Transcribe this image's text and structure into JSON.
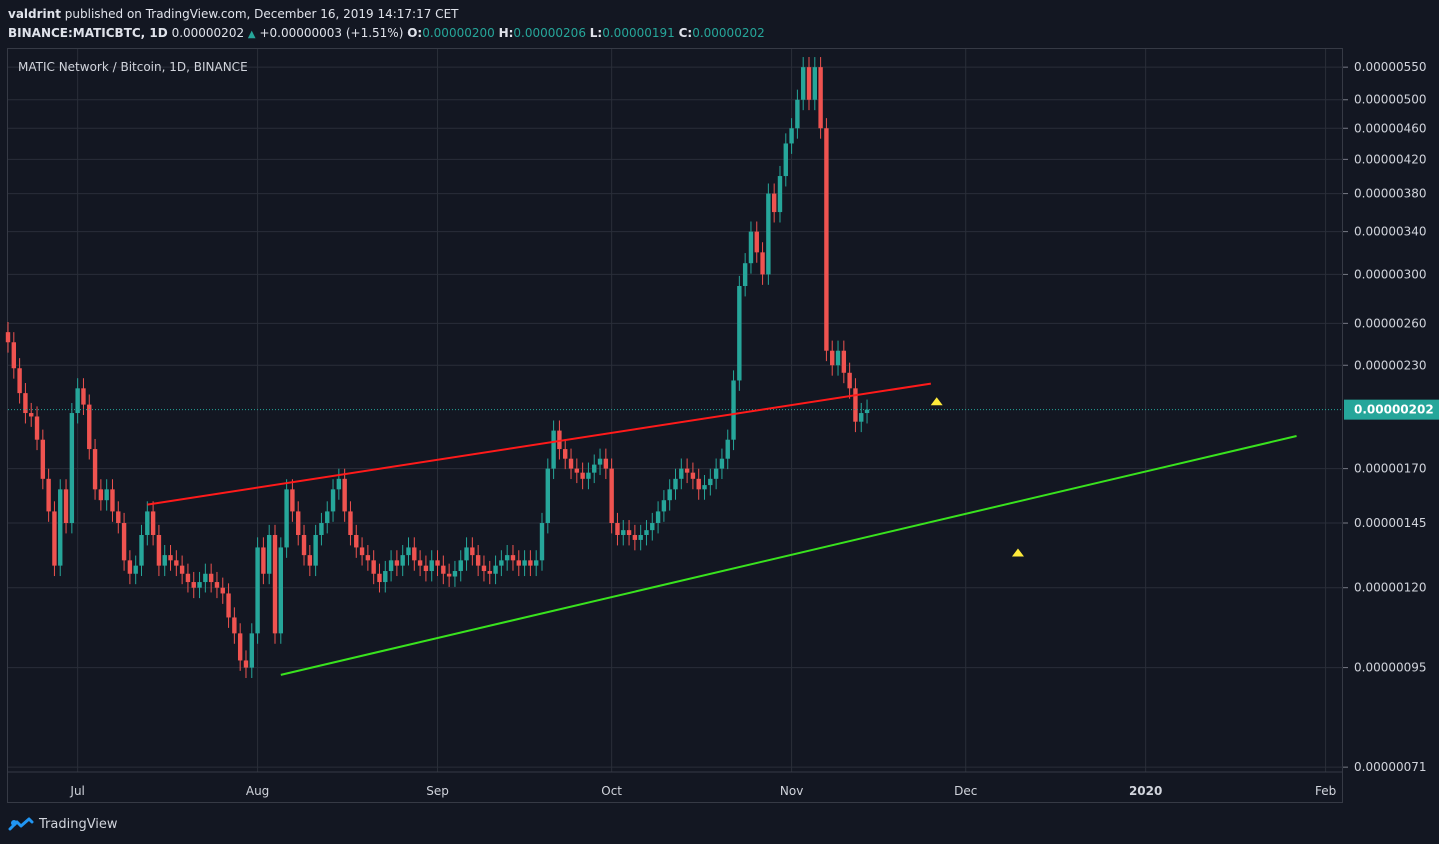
{
  "header": {
    "author": "valdrint",
    "published": "published on TradingView.com, December 16, 2019 14:17:17 CET",
    "symbol": "BINANCE:MATICBTC, 1D",
    "last": "0.00000202",
    "change": "+0.00000003 (+1.51%)",
    "o_label": "O:",
    "o": "0.00000200",
    "h_label": "H:",
    "h": "0.00000206",
    "l_label": "L:",
    "l": "0.00000191",
    "c_label": "C:",
    "c": "0.00000202"
  },
  "footer": {
    "brand": "TradingView"
  },
  "colors": {
    "background": "#131722",
    "up": "#26a69a",
    "down": "#ef5350",
    "resistance": "#ff1a1a",
    "support": "#39e31e",
    "marker": "#ffeb3b",
    "grid": "#2a2e39",
    "price_tag": "#26a69a"
  },
  "chart_data": {
    "type": "candlestick",
    "title": "MATIC Network / Bitcoin, 1D, BINANCE",
    "y_scale": "log",
    "ylim": [
      7e-07,
      5.8e-06
    ],
    "y_ticks": [
      "0.00000550",
      "0.00000500",
      "0.00000460",
      "0.00000420",
      "0.00000380",
      "0.00000340",
      "0.00000300",
      "0.00000260",
      "0.00000230",
      "0.00000170",
      "0.00000145",
      "0.00000120",
      "0.00000095",
      "0.00000071"
    ],
    "x_ticks": [
      "Jul",
      "Aug",
      "Sep",
      "Oct",
      "Nov",
      "Dec",
      "2020",
      "Feb"
    ],
    "x_tick_dates": [
      "2019-07-01",
      "2019-08-01",
      "2019-09-01",
      "2019-10-01",
      "2019-11-01",
      "2019-12-01",
      "2020-01-01",
      "2020-02-01"
    ],
    "xlim": [
      "2019-06-19",
      "2020-02-04"
    ],
    "last_price_label": "0.00000202",
    "last_price": 2.02e-06,
    "close_series": {
      "start": "2019-06-19",
      "values": [
        2.46e-06,
        2.28e-06,
        2.12e-06,
        2e-06,
        1.98e-06,
        1.85e-06,
        1.65e-06,
        1.5e-06,
        1.28e-06,
        1.6e-06,
        1.45e-06,
        2e-06,
        2.15e-06,
        2.05e-06,
        1.8e-06,
        1.6e-06,
        1.55e-06,
        1.6e-06,
        1.5e-06,
        1.45e-06,
        1.3e-06,
        1.25e-06,
        1.28e-06,
        1.4e-06,
        1.5e-06,
        1.4e-06,
        1.28e-06,
        1.32e-06,
        1.3e-06,
        1.28e-06,
        1.25e-06,
        1.22e-06,
        1.2e-06,
        1.22e-06,
        1.25e-06,
        1.22e-06,
        1.2e-06,
        1.18e-06,
        1.1e-06,
        1.05e-06,
        9.7e-07,
        9.5e-07,
        1.05e-06,
        1.35e-06,
        1.25e-06,
        1.4e-06,
        1.05e-06,
        1.35e-06,
        1.6e-06,
        1.5e-06,
        1.4e-06,
        1.32e-06,
        1.28e-06,
        1.4e-06,
        1.45e-06,
        1.5e-06,
        1.6e-06,
        1.65e-06,
        1.5e-06,
        1.4e-06,
        1.35e-06,
        1.32e-06,
        1.3e-06,
        1.25e-06,
        1.22e-06,
        1.26e-06,
        1.3e-06,
        1.28e-06,
        1.32e-06,
        1.35e-06,
        1.3e-06,
        1.28e-06,
        1.26e-06,
        1.3e-06,
        1.28e-06,
        1.25e-06,
        1.24e-06,
        1.26e-06,
        1.3e-06,
        1.35e-06,
        1.32e-06,
        1.28e-06,
        1.26e-06,
        1.25e-06,
        1.28e-06,
        1.3e-06,
        1.32e-06,
        1.3e-06,
        1.28e-06,
        1.3e-06,
        1.28e-06,
        1.3e-06,
        1.45e-06,
        1.7e-06,
        1.9e-06,
        1.8e-06,
        1.75e-06,
        1.7e-06,
        1.68e-06,
        1.65e-06,
        1.68e-06,
        1.72e-06,
        1.75e-06,
        1.7e-06,
        1.45e-06,
        1.4e-06,
        1.42e-06,
        1.4e-06,
        1.38e-06,
        1.4e-06,
        1.42e-06,
        1.45e-06,
        1.5e-06,
        1.55e-06,
        1.6e-06,
        1.65e-06,
        1.7e-06,
        1.68e-06,
        1.65e-06,
        1.6e-06,
        1.62e-06,
        1.65e-06,
        1.7e-06,
        1.75e-06,
        1.85e-06,
        2.2e-06,
        2.9e-06,
        3.1e-06,
        3.4e-06,
        3.2e-06,
        3e-06,
        3.8e-06,
        3.6e-06,
        4e-06,
        4.4e-06,
        4.6e-06,
        5e-06,
        5.5e-06,
        5e-06,
        5.5e-06,
        4.6e-06,
        2.4e-06,
        2.3e-06,
        2.4e-06,
        2.25e-06,
        2.15e-06,
        1.95e-06,
        2e-06,
        2.02e-06
      ]
    },
    "annotations": [
      {
        "kind": "trendline",
        "name": "resistance",
        "from": [
          "2019-07-13",
          1.53e-06
        ],
        "to": [
          "2019-11-25",
          2.18e-06
        ]
      },
      {
        "kind": "trendline",
        "name": "support",
        "from": [
          "2019-08-05",
          9.3e-07
        ],
        "to": [
          "2020-01-27",
          1.87e-06
        ]
      },
      {
        "kind": "marker",
        "shape": "triangle-up",
        "at": [
          "2019-11-26",
          2.07e-06
        ]
      },
      {
        "kind": "marker",
        "shape": "triangle-up",
        "at": [
          "2019-12-10",
          1.33e-06
        ]
      }
    ]
  }
}
